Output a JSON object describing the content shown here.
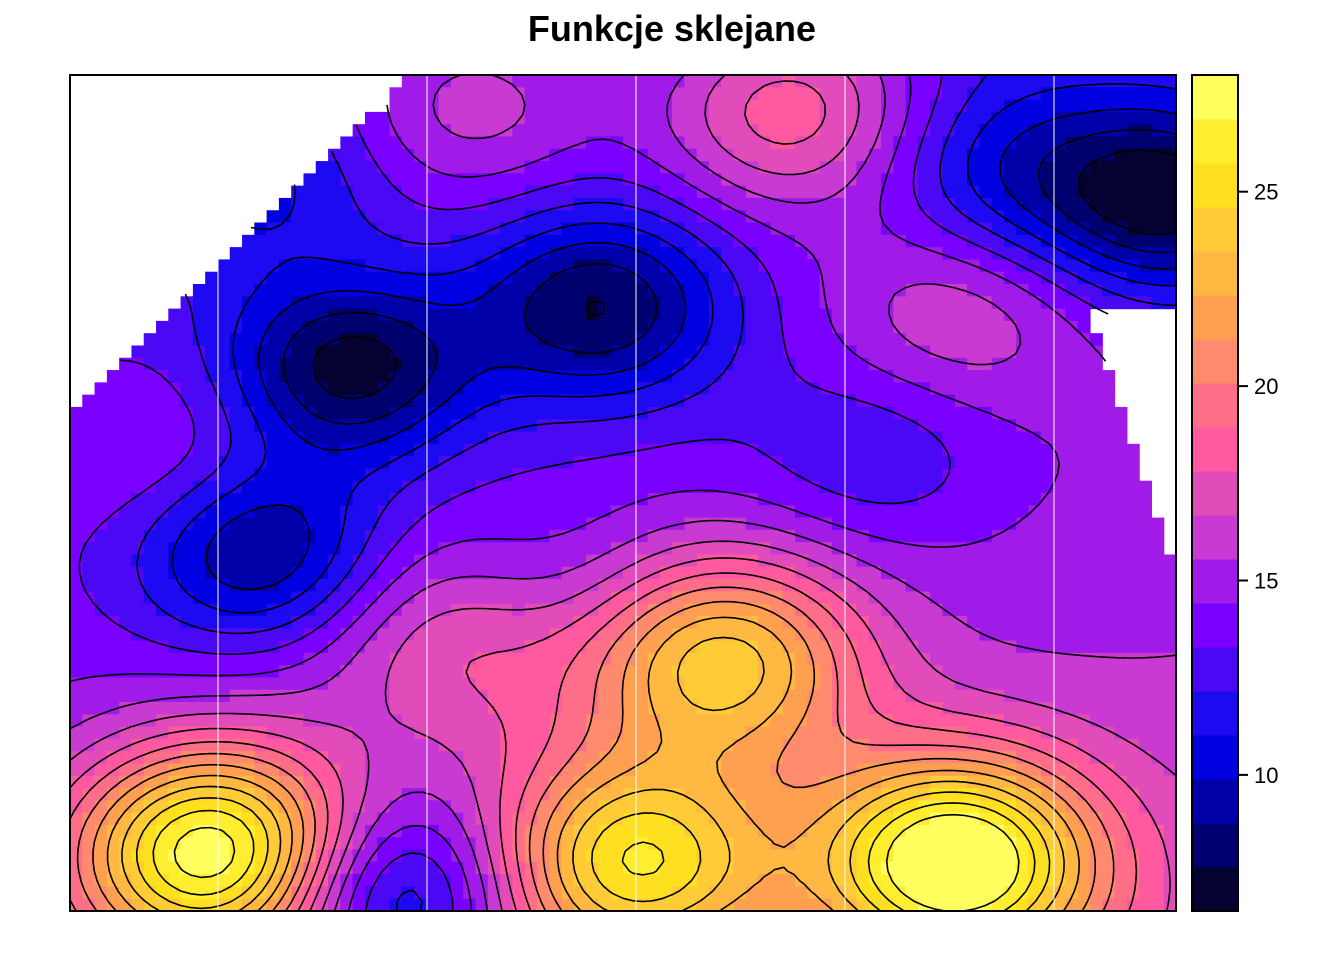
{
  "chart_data": {
    "type": "heatmap",
    "title": "Funkcje sklejane",
    "xlabel": "",
    "ylabel": "",
    "zlim": [
      6.5,
      28
    ],
    "colorbar": {
      "ticks": [
        10,
        15,
        20,
        25
      ],
      "tick_labels": [
        "10",
        "15",
        "20",
        "25"
      ],
      "colors": [
        "#050232",
        "#00006E",
        "#0000A8",
        "#0000E0",
        "#1E0AF0",
        "#4B08F4",
        "#7A00FF",
        "#A01AE8",
        "#C83AD2",
        "#E24CBA",
        "#FF5AA0",
        "#FF6E88",
        "#FF8A6E",
        "#FFA050",
        "#FFB842",
        "#FFCC38",
        "#FFE020",
        "#FFEE30",
        "#FFFF60"
      ]
    },
    "vertical_gridlines_count": 5,
    "contour_lines": true,
    "approx_surface": {
      "description_levels": "low values (~7-10) at center-left and upper-right; high values (~25-27) at lower-left and lower-right",
      "peaks": [
        {
          "x": 0.13,
          "y": 0.07,
          "value": 27
        },
        {
          "x": 0.8,
          "y": 0.06,
          "value": 27
        },
        {
          "x": 0.59,
          "y": 0.3,
          "value": 23
        },
        {
          "x": 0.51,
          "y": 0.06,
          "value": 24
        },
        {
          "x": 0.36,
          "y": 0.33,
          "value": 18
        },
        {
          "x": 0.65,
          "y": 0.96,
          "value": 20
        },
        {
          "x": 0.36,
          "y": 0.97,
          "value": 18
        },
        {
          "x": 0.21,
          "y": 0.8,
          "value": 16
        },
        {
          "x": 0.8,
          "y": 0.72,
          "value": 17
        },
        {
          "x": 0.1,
          "y": 0.55,
          "value": 16
        }
      ],
      "troughs": [
        {
          "x": 0.25,
          "y": 0.65,
          "value": 7.5
        },
        {
          "x": 0.48,
          "y": 0.72,
          "value": 8.5
        },
        {
          "x": 0.17,
          "y": 0.43,
          "value": 8.5
        },
        {
          "x": 0.99,
          "y": 0.85,
          "value": 7.5
        },
        {
          "x": 0.29,
          "y": 0.02,
          "value": 8
        },
        {
          "x": 0.73,
          "y": 0.55,
          "value": 12
        },
        {
          "x": 0.42,
          "y": 0.38,
          "value": 12
        },
        {
          "x": 0.19,
          "y": 0.85,
          "value": 11
        },
        {
          "x": 0.84,
          "y": 0.88,
          "value": 11
        }
      ]
    }
  }
}
